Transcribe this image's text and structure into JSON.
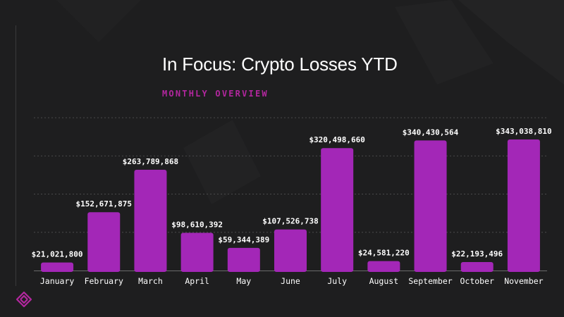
{
  "header": {
    "title": "In Focus: Crypto Losses YTD",
    "subtitle": "MONTHLY OVERVIEW"
  },
  "colors": {
    "background": "#1e1e1f",
    "bar": "#a327b7",
    "accent": "#b2279e",
    "text": "#ffffff",
    "gridline": "#4a4a4b"
  },
  "logo": {
    "icon": "brand-diamond-logo-icon"
  },
  "chart_data": {
    "type": "bar",
    "categories": [
      "January",
      "February",
      "March",
      "April",
      "May",
      "June",
      "July",
      "August",
      "September",
      "October",
      "November"
    ],
    "values": [
      21021800,
      152671875,
      263789868,
      98610392,
      59344389,
      107526738,
      320498660,
      24581220,
      340430564,
      22193496,
      343038810
    ],
    "data_labels": [
      "$21,021,800",
      "$152,671,875",
      "$263,789,868",
      "$98,610,392",
      "$59,344,389",
      "$107,526,738",
      "$320,498,660",
      "$24,581,220",
      "$340,430,564",
      "$22,193,496",
      "$343,038,810"
    ],
    "title": "In Focus: Crypto Losses YTD",
    "subtitle": "MONTHLY OVERVIEW",
    "xlabel": "",
    "ylabel": "",
    "ylim": [
      0,
      400000000
    ],
    "grid": true,
    "legend": "none"
  }
}
